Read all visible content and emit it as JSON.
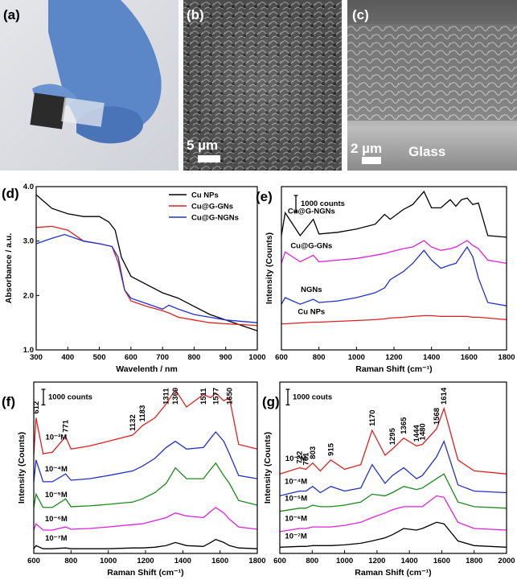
{
  "images": [
    {
      "label": "(a)"
    },
    {
      "label": "(b)",
      "scale": "5 µm"
    },
    {
      "label": "(c)",
      "scale": "2 µm",
      "annotation": "Glass"
    }
  ],
  "chart_data": [
    {
      "type": "line",
      "panel_label": "(d)",
      "x_label": "Wavelenth / nm",
      "y_label": "Absorbance / a.u.",
      "xlim": [
        300,
        1000
      ],
      "xticks": [
        300,
        400,
        500,
        600,
        700,
        800,
        900,
        1000
      ],
      "ylim": [
        1,
        4
      ],
      "yticks": [
        {
          "value": 1,
          "label": "1.0"
        },
        {
          "value": 2,
          "label": "2.0"
        },
        {
          "value": 3,
          "label": "3.0"
        },
        {
          "value": 4,
          "label": "4.0"
        }
      ],
      "legend": "upper right",
      "series": [
        {
          "name": "Cu NPs",
          "color": "#000000",
          "x": [
            300,
            350,
            400,
            450,
            500,
            530,
            550,
            570,
            600,
            650,
            700,
            750,
            800,
            850,
            900,
            950,
            1000
          ],
          "values": [
            3.85,
            3.6,
            3.5,
            3.45,
            3.45,
            3.35,
            3.2,
            2.7,
            2.35,
            2.2,
            2.05,
            1.95,
            1.8,
            1.65,
            1.55,
            1.45,
            1.35
          ]
        },
        {
          "name": "Cu@G-GNs",
          "color": "#e02020",
          "x": [
            300,
            350,
            400,
            450,
            500,
            540,
            560,
            580,
            600,
            650,
            700,
            720,
            750,
            800,
            850,
            900,
            1000
          ],
          "values": [
            3.25,
            3.27,
            3.2,
            3.0,
            2.95,
            2.9,
            2.6,
            2.1,
            1.9,
            1.8,
            1.72,
            1.68,
            1.6,
            1.55,
            1.5,
            1.48,
            1.45
          ]
        },
        {
          "name": "Cu@G-NGNs",
          "color": "#2030d0",
          "x": [
            300,
            350,
            390,
            450,
            500,
            540,
            560,
            580,
            600,
            650,
            700,
            720,
            750,
            800,
            850,
            900,
            1000
          ],
          "values": [
            2.95,
            3.05,
            3.12,
            3.0,
            2.95,
            2.9,
            2.7,
            2.1,
            1.95,
            1.85,
            1.75,
            1.82,
            1.75,
            1.65,
            1.6,
            1.55,
            1.5
          ]
        }
      ]
    },
    {
      "type": "line",
      "panel_label": "(e)",
      "x_label": "Raman Shift (cm⁻¹)",
      "y_label": "Intensity (Counts)",
      "xlim": [
        600,
        1800
      ],
      "xticks": [
        600,
        800,
        1000,
        1200,
        1400,
        1600,
        1800
      ],
      "ylim": [
        0,
        10000
      ],
      "scale_bar": 1000,
      "scale_bar_label": "1000 counts",
      "series": [
        {
          "name": "Cu NPs",
          "color": "#e02020",
          "x": [
            600,
            620,
            700,
            770,
            800,
            900,
            1000,
            1100,
            1150,
            1180,
            1250,
            1300,
            1360,
            1400,
            1450,
            1500,
            1530,
            1560,
            1590,
            1620,
            1650,
            1700,
            1800
          ],
          "values": [
            1600,
            1600,
            1650,
            1700,
            1700,
            1750,
            1800,
            1850,
            1900,
            1950,
            2000,
            2050,
            2100,
            2100,
            2050,
            2050,
            2050,
            2050,
            2050,
            2000,
            2000,
            1950,
            1850
          ]
        },
        {
          "name": "NGNs",
          "color": "#2030d0",
          "x": [
            600,
            620,
            700,
            770,
            800,
            900,
            1000,
            1100,
            1150,
            1180,
            1250,
            1300,
            1360,
            1400,
            1450,
            1500,
            1530,
            1560,
            1590,
            1620,
            1650,
            1700,
            1800
          ],
          "values": [
            2800,
            3200,
            2800,
            3100,
            2900,
            3000,
            3200,
            3500,
            3800,
            4300,
            4800,
            5300,
            6100,
            5500,
            5000,
            5200,
            5300,
            5800,
            6300,
            5700,
            4400,
            2900,
            2700
          ]
        },
        {
          "name": "Cu@G-GNs",
          "color": "#e020e0",
          "x": [
            600,
            620,
            700,
            770,
            800,
            900,
            1000,
            1100,
            1150,
            1180,
            1250,
            1300,
            1360,
            1400,
            1450,
            1500,
            1530,
            1560,
            1590,
            1620,
            1650,
            1700,
            1800
          ],
          "values": [
            5300,
            6000,
            5400,
            5800,
            5400,
            5500,
            5600,
            5800,
            5900,
            6000,
            6200,
            6300,
            6700,
            6300,
            6100,
            6200,
            6300,
            6500,
            6700,
            6400,
            6200,
            5500,
            5300
          ]
        },
        {
          "name": "Cu@G-NGNs",
          "color": "#000000",
          "x": [
            600,
            620,
            700,
            770,
            800,
            900,
            1000,
            1100,
            1150,
            1180,
            1250,
            1300,
            1360,
            1400,
            1450,
            1500,
            1530,
            1560,
            1590,
            1620,
            1650,
            1700,
            1800
          ],
          "values": [
            7000,
            8400,
            7000,
            8000,
            7100,
            7200,
            7400,
            7700,
            8300,
            8000,
            8600,
            8900,
            9700,
            8700,
            8700,
            9200,
            8800,
            9200,
            9300,
            8900,
            9000,
            7000,
            6900
          ]
        }
      ]
    },
    {
      "type": "line",
      "panel_label": "(f)",
      "x_label": "Raman Shift (cm⁻¹)",
      "y_label": "Intensity (Counts)",
      "xlim": [
        600,
        1800
      ],
      "xticks": [
        600,
        800,
        1000,
        1200,
        1400,
        1600,
        1800
      ],
      "ylim": [
        0,
        11000
      ],
      "scale_bar": 1000,
      "scale_bar_label": "1000 counts",
      "peak_labels": [
        612,
        771,
        1132,
        1183,
        1311,
        1360,
        1511,
        1577,
        1650
      ],
      "series": [
        {
          "name": "10⁻⁷M",
          "color": "#000000",
          "x": [
            600,
            612,
            650,
            700,
            771,
            800,
            900,
            1000,
            1132,
            1183,
            1250,
            1311,
            1360,
            1420,
            1511,
            1550,
            1577,
            1620,
            1650,
            1700,
            1800
          ],
          "values": [
            300,
            500,
            300,
            300,
            350,
            300,
            300,
            300,
            350,
            350,
            400,
            500,
            700,
            500,
            450,
            700,
            900,
            700,
            500,
            350,
            300
          ]
        },
        {
          "name": "10⁻⁶M",
          "color": "#e020e0",
          "x": [
            600,
            612,
            650,
            700,
            771,
            800,
            900,
            1000,
            1132,
            1183,
            1250,
            1311,
            1360,
            1420,
            1511,
            1550,
            1577,
            1620,
            1650,
            1700,
            1800
          ],
          "values": [
            1500,
            1900,
            1500,
            1500,
            1700,
            1550,
            1600,
            1700,
            1850,
            1900,
            2100,
            2300,
            2600,
            2400,
            2300,
            2700,
            2950,
            2600,
            2200,
            1700,
            1550
          ]
        },
        {
          "name": "10⁻⁵M",
          "color": "#1a8a1a",
          "x": [
            600,
            612,
            650,
            700,
            771,
            800,
            900,
            1000,
            1132,
            1183,
            1250,
            1311,
            1360,
            1420,
            1511,
            1550,
            1577,
            1620,
            1650,
            1700,
            1800
          ],
          "values": [
            2950,
            3800,
            2950,
            2950,
            3500,
            3000,
            3050,
            3150,
            3300,
            3500,
            3900,
            4500,
            5500,
            4800,
            4800,
            5400,
            5800,
            5000,
            4500,
            3400,
            3100
          ]
        },
        {
          "name": "10⁻⁴M",
          "color": "#2030d0",
          "x": [
            600,
            612,
            650,
            700,
            771,
            800,
            900,
            1000,
            1132,
            1183,
            1250,
            1311,
            1360,
            1420,
            1511,
            1550,
            1577,
            1620,
            1650,
            1700,
            1800
          ],
          "values": [
            4600,
            6000,
            4600,
            4600,
            5100,
            4700,
            4800,
            5000,
            5300,
            5600,
            6100,
            6800,
            7200,
            6700,
            6800,
            7400,
            7800,
            7200,
            6400,
            5000,
            4800
          ]
        },
        {
          "name": "10⁻³M",
          "color": "#e02020",
          "x": [
            600,
            612,
            650,
            700,
            771,
            800,
            900,
            1000,
            1132,
            1183,
            1250,
            1311,
            1360,
            1420,
            1511,
            1550,
            1577,
            1620,
            1650,
            1700,
            1800
          ],
          "values": [
            6300,
            8700,
            6400,
            6500,
            7500,
            6700,
            6900,
            7200,
            7600,
            8200,
            8700,
            9600,
            10500,
            9400,
            10200,
            10000,
            10300,
            9800,
            10000,
            7000,
            6700
          ]
        }
      ]
    },
    {
      "type": "line",
      "panel_label": "(g)",
      "x_label": "Raman Shift (cm⁻¹)",
      "y_label": "Intensity (Counts)",
      "xlim": [
        600,
        2000
      ],
      "xticks": [
        600,
        800,
        1000,
        1200,
        1400,
        1600,
        1800,
        2000
      ],
      "ylim": [
        0,
        11000
      ],
      "scale_bar": 1000,
      "scale_bar_label": "1000 couts",
      "peak_labels": [
        722,
        761,
        803,
        915,
        1170,
        1295,
        1365,
        1444,
        1480,
        1568,
        1614
      ],
      "series": [
        {
          "name": "10⁻⁷M",
          "color": "#000000",
          "x": [
            600,
            722,
            761,
            803,
            850,
            915,
            1000,
            1100,
            1170,
            1250,
            1295,
            1365,
            1444,
            1480,
            1568,
            1614,
            1700,
            1800,
            2000
          ],
          "values": [
            400,
            450,
            450,
            500,
            500,
            500,
            550,
            650,
            800,
            1000,
            1200,
            1600,
            1500,
            1600,
            2000,
            1900,
            800,
            500,
            400
          ]
        },
        {
          "name": "10⁻⁶M",
          "color": "#e020e0",
          "x": [
            600,
            722,
            761,
            803,
            850,
            915,
            1000,
            1100,
            1170,
            1250,
            1295,
            1365,
            1444,
            1480,
            1568,
            1614,
            1700,
            1800,
            2000
          ],
          "values": [
            1400,
            1600,
            1600,
            1700,
            1700,
            1700,
            1800,
            2000,
            2300,
            2600,
            2800,
            3000,
            3000,
            3000,
            3700,
            3600,
            2000,
            1600,
            1500
          ]
        },
        {
          "name": "10⁻⁵M",
          "color": "#1a8a1a",
          "x": [
            600,
            722,
            761,
            803,
            850,
            915,
            1000,
            1100,
            1170,
            1250,
            1295,
            1365,
            1444,
            1480,
            1568,
            1614,
            1700,
            1800,
            2000
          ],
          "values": [
            2700,
            2900,
            2900,
            3100,
            3000,
            3000,
            3100,
            3300,
            3800,
            3700,
            3900,
            4300,
            4100,
            4200,
            4800,
            5100,
            3300,
            3000,
            2900
          ]
        },
        {
          "name": "10⁻⁴M",
          "color": "#2030d0",
          "x": [
            600,
            722,
            761,
            803,
            850,
            915,
            1000,
            1100,
            1170,
            1250,
            1295,
            1365,
            1444,
            1480,
            1568,
            1614,
            1700,
            1800,
            2000
          ],
          "values": [
            3700,
            4000,
            4000,
            4300,
            3900,
            4300,
            4000,
            4200,
            5700,
            4500,
            5000,
            5500,
            4800,
            5000,
            6200,
            7200,
            4400,
            4000,
            3900
          ]
        },
        {
          "name": "10⁻³M",
          "color": "#e02020",
          "x": [
            600,
            722,
            761,
            803,
            850,
            915,
            1000,
            1100,
            1170,
            1250,
            1295,
            1365,
            1444,
            1480,
            1568,
            1614,
            1700,
            1800,
            2000
          ],
          "values": [
            5100,
            5500,
            5400,
            5800,
            5300,
            6000,
            5400,
            5700,
            7900,
            6300,
            6700,
            7400,
            6900,
            7000,
            8000,
            9300,
            6000,
            5300,
            5100
          ]
        }
      ]
    }
  ]
}
